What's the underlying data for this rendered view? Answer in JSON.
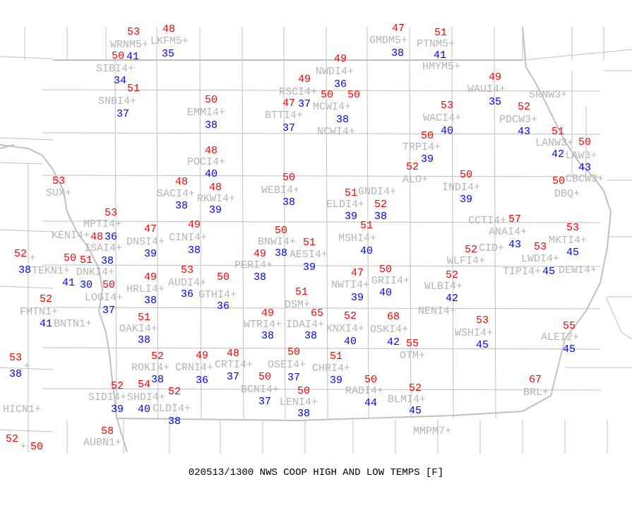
{
  "title": "020513/1300 NWS COOP HIGH AND LOW TEMPS [F]",
  "colors": {
    "high": "#ff0000",
    "low": "#0000ff",
    "station_label": "#b4b4b4",
    "boundaries": "#c0c0c0"
  },
  "stations": [
    {
      "id": "WRNM5",
      "high": "53",
      "low": "41"
    },
    {
      "id": "LKFM5",
      "high": "48",
      "low": "35"
    },
    {
      "id": "GMDM5",
      "high": "47",
      "low": "38"
    },
    {
      "id": "PTNM5",
      "high": "51",
      "low": "41"
    },
    {
      "id": "HMYM5",
      "high": "",
      "low": ""
    },
    {
      "id": "SIBI4",
      "high": "50",
      "low": "34"
    },
    {
      "id": "NWDI4",
      "high": "49",
      "low": "36"
    },
    {
      "id": "WAUI4",
      "high": "49",
      "low": "35"
    },
    {
      "id": "RSCI4",
      "high": "49",
      "low": "37"
    },
    {
      "id": "SNBI4",
      "high": "51",
      "low": "37"
    },
    {
      "id": "MCWI4",
      "high": "50",
      "low": "38"
    },
    {
      "id": "NCWI4",
      "high": "50",
      "low": ""
    },
    {
      "id": "SRNW3",
      "high": "",
      "low": ""
    },
    {
      "id": "EMMI4",
      "high": "50",
      "low": "38"
    },
    {
      "id": "BTTI4",
      "high": "47",
      "low": "37"
    },
    {
      "id": "WACI4",
      "high": "53",
      "low": "40"
    },
    {
      "id": "PDCW3",
      "high": "52",
      "low": "43"
    },
    {
      "id": "LANW3",
      "high": "51",
      "low": "42"
    },
    {
      "id": "LAW3",
      "high": "50",
      "low": "43"
    },
    {
      "id": "CBCW3",
      "high": "",
      "low": ""
    },
    {
      "id": "TRPI4",
      "high": "50",
      "low": "39"
    },
    {
      "id": "POCI4",
      "high": "48",
      "low": "40"
    },
    {
      "id": "ALO",
      "high": "52",
      "low": ""
    },
    {
      "id": "INDI4",
      "high": "50",
      "low": "39"
    },
    {
      "id": "DBQ",
      "high": "50",
      "low": ""
    },
    {
      "id": "SUX",
      "high": "53",
      "low": ""
    },
    {
      "id": "SACI4",
      "high": "48",
      "low": "38"
    },
    {
      "id": "RKWI4",
      "high": "48",
      "low": "39"
    },
    {
      "id": "WEBI4",
      "high": "50",
      "low": "38"
    },
    {
      "id": "ELDI4",
      "high": "51",
      "low": "39"
    },
    {
      "id": "GNDI4",
      "high": "52",
      "low": "38"
    },
    {
      "id": "MPTI4",
      "high": "53",
      "low": "36"
    },
    {
      "id": "ISAI4",
      "high": "48",
      "low": "38"
    },
    {
      "id": "KENI4",
      "high": "",
      "low": ""
    },
    {
      "id": "DNSI4",
      "high": "47",
      "low": "39"
    },
    {
      "id": "CINI4",
      "high": "49",
      "low": "38"
    },
    {
      "id": "BNWI4",
      "high": "50",
      "low": "38"
    },
    {
      "id": "AESI4",
      "high": "51",
      "low": "39"
    },
    {
      "id": "MSHI4",
      "high": "51",
      "low": "40"
    },
    {
      "id": "CCTI4",
      "high": "",
      "low": ""
    },
    {
      "id": "ANAI4",
      "high": "57",
      "low": "43"
    },
    {
      "id": "MKTI4",
      "high": "53",
      "low": "45"
    },
    {
      "id": "LWDI4",
      "high": "53",
      "low": "45"
    },
    {
      "id": "TIPI4",
      "high": "",
      "low": ""
    },
    {
      "id": "DEWI4",
      "high": "",
      "low": ""
    },
    {
      "id": "WLFI4",
      "high": "",
      "low": ""
    },
    {
      "id": "CID",
      "high": "52",
      "low": ""
    },
    {
      "id": "TEKN1",
      "high": "50",
      "low": "41"
    },
    {
      "id": "",
      "high": "52",
      "low": "38"
    },
    {
      "id": "DNKI4",
      "high": "51",
      "low": "30"
    },
    {
      "id": "LOGI4",
      "high": "50",
      "low": "37"
    },
    {
      "id": "HRLI4",
      "high": "49",
      "low": "38"
    },
    {
      "id": "AUDI4",
      "high": "53",
      "low": "36"
    },
    {
      "id": "GTHI4",
      "high": "50",
      "low": "36"
    },
    {
      "id": "PERI4",
      "high": "49",
      "low": "38"
    },
    {
      "id": "NWTI4",
      "high": "47",
      "low": "39"
    },
    {
      "id": "GRII4",
      "high": "50",
      "low": "40"
    },
    {
      "id": "WLBI4",
      "high": "52",
      "low": "42"
    },
    {
      "id": "NENI4",
      "high": "",
      "low": ""
    },
    {
      "id": "DSM",
      "high": "51",
      "low": ""
    },
    {
      "id": "FMTN1",
      "high": "52",
      "low": "41"
    },
    {
      "id": "BNTN1",
      "high": "",
      "low": ""
    },
    {
      "id": "OAKI4",
      "high": "51",
      "low": "38"
    },
    {
      "id": "WTRI4",
      "high": "49",
      "low": "38"
    },
    {
      "id": "IDAI4",
      "high": "65",
      "low": "38"
    },
    {
      "id": "KNXI4",
      "high": "52",
      "low": "40"
    },
    {
      "id": "OSKI4",
      "high": "68",
      "low": "42"
    },
    {
      "id": "WSHI4",
      "high": "53",
      "low": "45"
    },
    {
      "id": "ALEI2",
      "high": "55",
      "low": "45"
    },
    {
      "id": "OTM",
      "high": "55",
      "low": ""
    },
    {
      "id": "",
      "high": "53",
      "low": "38"
    },
    {
      "id": "ROKI4",
      "high": "52",
      "low": "38"
    },
    {
      "id": "CRNI4",
      "high": "49",
      "low": "36"
    },
    {
      "id": "CRTI4",
      "high": "48",
      "low": "37"
    },
    {
      "id": "OSEI4",
      "high": "50",
      "low": "37"
    },
    {
      "id": "CHRI4",
      "high": "51",
      "low": "39"
    },
    {
      "id": "BCNI4",
      "high": "50",
      "low": "37"
    },
    {
      "id": "SIDI4",
      "high": "52",
      "low": "39"
    },
    {
      "id": "SHDI4",
      "high": "54",
      "low": "40"
    },
    {
      "id": "CLDI4",
      "high": "52",
      "low": "38"
    },
    {
      "id": "LENI4",
      "high": "50",
      "low": "38"
    },
    {
      "id": "RADI4",
      "high": "50",
      "low": "44"
    },
    {
      "id": "BLMI4",
      "high": "52",
      "low": "45"
    },
    {
      "id": "BRL",
      "high": "67",
      "low": ""
    },
    {
      "id": "HICN1",
      "high": "",
      "low": ""
    },
    {
      "id": "MMPM7",
      "high": "",
      "low": ""
    },
    {
      "id": "AUBN1",
      "high": "58",
      "low": ""
    },
    {
      "id": "",
      "high": "52",
      "low": ""
    },
    {
      "id": "",
      "high": "50",
      "low": ""
    }
  ]
}
